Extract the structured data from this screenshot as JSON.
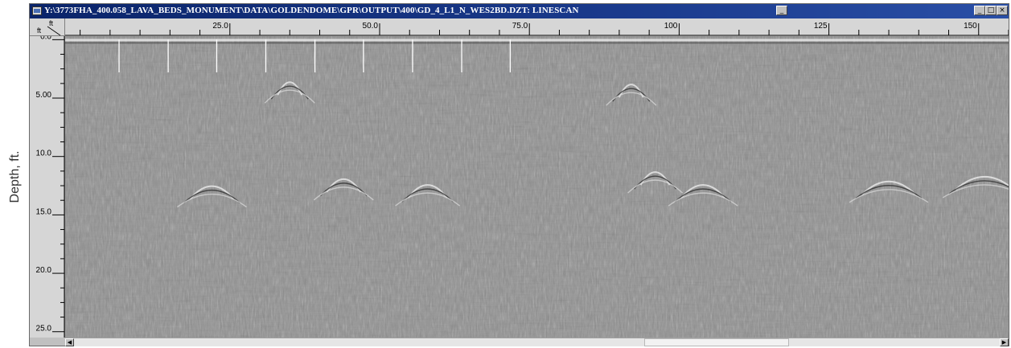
{
  "window": {
    "title": "Y:\\3773FHA_400.058_LAVA_BEDS_MONUMENT\\DATA\\GOLDENDOME\\GPR\\OUTPUT\\400\\GD_4_L1_N_WES2BD.DZT: LINESCAN",
    "minimize_label": "_",
    "maximize_label": "□",
    "close_label": "×"
  },
  "axes": {
    "y_title": "Depth, ft.",
    "corner_x_unit": "ft",
    "corner_y_unit": "ft",
    "x_ticks": [
      "25.0",
      "50.0",
      "75.0",
      "100",
      "125",
      "150"
    ],
    "x_tick_values": [
      25,
      50,
      75,
      100,
      125,
      150
    ],
    "x_range": [
      -2.5,
      155
    ],
    "y_ticks": [
      "0.0",
      "5.00",
      "10.0",
      "15.0",
      "20.0",
      "25.0"
    ],
    "y_tick_values": [
      0,
      5,
      10,
      15,
      20,
      25
    ],
    "y_range": [
      -0.3,
      25.5
    ],
    "y_inverted": true
  },
  "markers": {
    "x_values": [
      6.5,
      14.7,
      22.8,
      31.0,
      39.2,
      47.3,
      55.5,
      63.7,
      71.8
    ],
    "depth_to": 2.8
  },
  "scroll": {
    "left_arrow": "◀",
    "right_arrow": "▶"
  },
  "colors": {
    "title_bar": "#0a246a",
    "radargram_background": "#8d8d8d",
    "marker_line": "#ffffff"
  }
}
